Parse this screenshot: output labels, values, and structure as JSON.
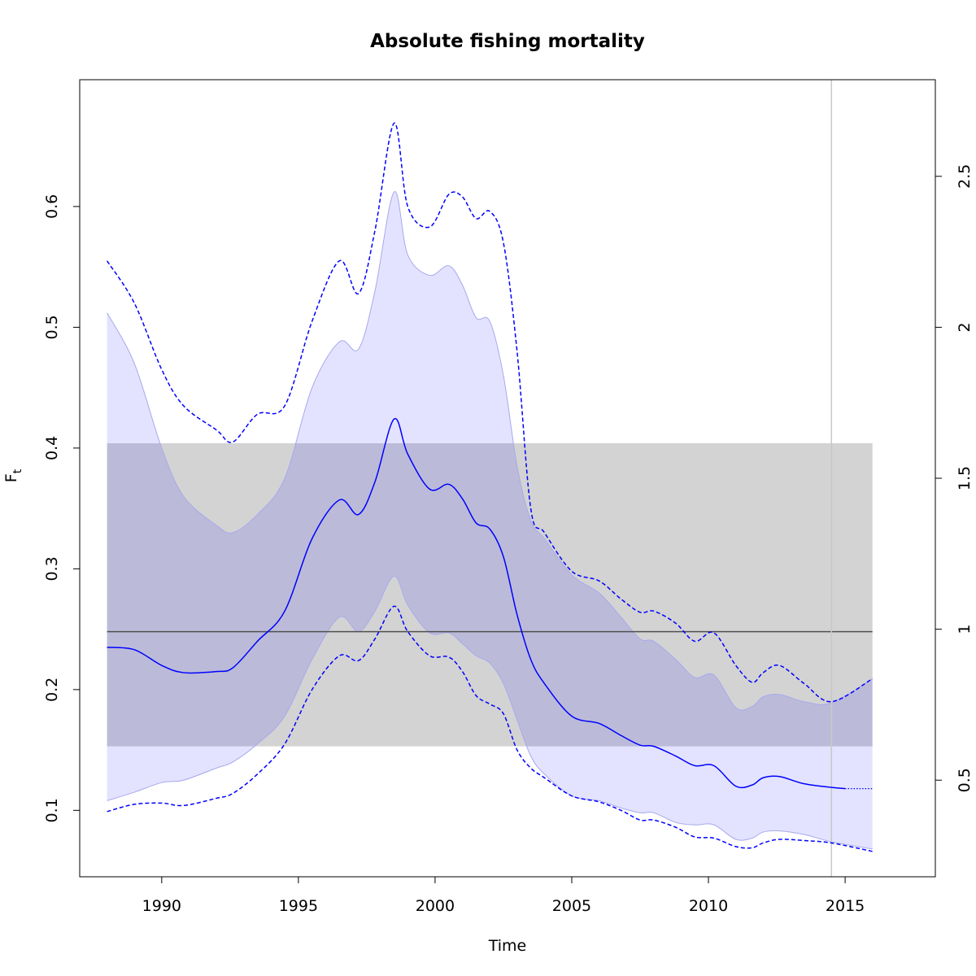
{
  "chart_data": {
    "type": "line",
    "title": "Absolute fishing mortality",
    "xlabel": "Time",
    "ylabel": "F",
    "ylabel_subscript": "t",
    "xlim": [
      1987,
      2018.3
    ],
    "ylim": [
      0.045,
      0.705
    ],
    "y2lim": [
      0.18,
      2.82
    ],
    "x_ticks": [
      1990,
      1995,
      2000,
      2005,
      2010,
      2015
    ],
    "x_tick_labels": [
      "1990",
      "1995",
      "2000",
      "2005",
      "2010",
      "2015"
    ],
    "y_ticks": [
      0.1,
      0.2,
      0.3,
      0.4,
      0.5,
      0.6
    ],
    "y_tick_labels": [
      "0.1",
      "0.2",
      "0.3",
      "0.4",
      "0.5",
      "0.6"
    ],
    "y2_ticks": [
      0.5,
      1,
      1.5,
      2,
      2.5
    ],
    "y2_tick_labels": [
      "0.5",
      "1",
      "1.5",
      "2",
      "2.5"
    ],
    "grid": false,
    "colors": {
      "estimate": "#0000ff",
      "ci_fill": "#e3e3ff",
      "ci_edge": "#a8a8ee",
      "ref_band": "#d3d3d3",
      "overlap": "#bbbbd9",
      "ref_line": "#505050",
      "vline": "#c8c8c8"
    },
    "reference": {
      "fmsy": 0.248,
      "fmsy_lower": 0.153,
      "fmsy_upper": 0.404,
      "x_range": [
        1988,
        2016
      ]
    },
    "vline_x": 2014.5,
    "series": [
      {
        "role": "estimate",
        "x": [
          1988,
          1989,
          1990,
          1990.8,
          1992,
          1992.6,
          1993.5,
          1994.5,
          1995.5,
          1996.5,
          1997.2,
          1997.8,
          1998.5,
          1999,
          1999.8,
          2000.5,
          2001,
          2001.5,
          2002,
          2002.5,
          2003,
          2003.5,
          2004,
          2005,
          2006,
          2006.8,
          2007.5,
          2008,
          2008.8,
          2009.5,
          2010.2,
          2011,
          2011.6,
          2012,
          2012.6,
          2013.5,
          2014.5,
          2015
        ],
        "values": [
          0.235,
          0.233,
          0.22,
          0.214,
          0.215,
          0.218,
          0.24,
          0.265,
          0.325,
          0.357,
          0.345,
          0.372,
          0.424,
          0.395,
          0.366,
          0.37,
          0.358,
          0.338,
          0.333,
          0.31,
          0.262,
          0.225,
          0.205,
          0.178,
          0.172,
          0.162,
          0.154,
          0.153,
          0.145,
          0.137,
          0.137,
          0.12,
          0.121,
          0.127,
          0.128,
          0.122,
          0.119,
          0.118
        ]
      },
      {
        "role": "projection",
        "x": [
          2015,
          2016
        ],
        "values": [
          0.118,
          0.118
        ]
      },
      {
        "role": "ci_upper",
        "x": [
          1988,
          1989,
          1990,
          1990.8,
          1992,
          1992.6,
          1993.5,
          1994.5,
          1995.5,
          1996.5,
          1997.2,
          1997.8,
          1998.5,
          1999,
          1999.8,
          2000.5,
          2001,
          2001.5,
          2002,
          2002.5,
          2003,
          2003.5,
          2004,
          2005,
          2006,
          2006.8,
          2007.5,
          2008,
          2008.8,
          2009.5,
          2010.2,
          2011,
          2011.6,
          2012,
          2012.6,
          2013.5,
          2014.5,
          2016
        ],
        "values": [
          0.512,
          0.47,
          0.4,
          0.36,
          0.336,
          0.33,
          0.345,
          0.375,
          0.45,
          0.488,
          0.482,
          0.53,
          0.612,
          0.56,
          0.543,
          0.551,
          0.535,
          0.508,
          0.505,
          0.46,
          0.385,
          0.34,
          0.325,
          0.295,
          0.28,
          0.26,
          0.242,
          0.24,
          0.225,
          0.21,
          0.212,
          0.185,
          0.186,
          0.194,
          0.196,
          0.19,
          0.189,
          0.209
        ]
      },
      {
        "role": "ci_lower",
        "x": [
          1988,
          1989,
          1990,
          1990.8,
          1992,
          1992.6,
          1993.5,
          1994.5,
          1995.5,
          1996.5,
          1997.2,
          1997.8,
          1998.5,
          1999,
          1999.8,
          2000.5,
          2001,
          2001.5,
          2002,
          2002.5,
          2003,
          2003.5,
          2004,
          2005,
          2006,
          2006.8,
          2007.5,
          2008,
          2008.8,
          2009.5,
          2010.2,
          2011,
          2011.6,
          2012,
          2012.6,
          2013.5,
          2014.5,
          2016
        ],
        "values": [
          0.108,
          0.115,
          0.123,
          0.125,
          0.135,
          0.14,
          0.155,
          0.178,
          0.225,
          0.26,
          0.248,
          0.265,
          0.294,
          0.27,
          0.247,
          0.247,
          0.238,
          0.228,
          0.222,
          0.205,
          0.175,
          0.145,
          0.13,
          0.112,
          0.108,
          0.102,
          0.098,
          0.098,
          0.09,
          0.088,
          0.088,
          0.076,
          0.077,
          0.082,
          0.083,
          0.08,
          0.074,
          0.068
        ]
      },
      {
        "role": "upper_dashed",
        "x": [
          1988,
          1989,
          1990,
          1990.8,
          1992,
          1992.6,
          1993.5,
          1994.5,
          1995.5,
          1996.5,
          1997.2,
          1997.8,
          1998.5,
          1999,
          1999.8,
          2000.5,
          2001,
          2001.5,
          2002,
          2002.5,
          2003,
          2003.5,
          2004,
          2005,
          2006,
          2006.8,
          2007.5,
          2008,
          2008.8,
          2009.5,
          2010.2,
          2011,
          2011.6,
          2012,
          2012.6,
          2013.5,
          2014.5,
          2016
        ],
        "values": [
          0.555,
          0.52,
          0.465,
          0.435,
          0.415,
          0.405,
          0.428,
          0.435,
          0.505,
          0.555,
          0.528,
          0.58,
          0.669,
          0.6,
          0.583,
          0.61,
          0.608,
          0.59,
          0.596,
          0.57,
          0.48,
          0.35,
          0.33,
          0.298,
          0.29,
          0.275,
          0.264,
          0.265,
          0.255,
          0.24,
          0.247,
          0.22,
          0.206,
          0.214,
          0.22,
          0.205,
          0.19,
          0.209
        ]
      },
      {
        "role": "lower_dashed",
        "x": [
          1988,
          1989,
          1990,
          1990.8,
          1992,
          1992.6,
          1993.5,
          1994.5,
          1995.5,
          1996.5,
          1997.2,
          1997.8,
          1998.5,
          1999,
          1999.8,
          2000.5,
          2001,
          2001.5,
          2002,
          2002.5,
          2003,
          2003.5,
          2004,
          2005,
          2006,
          2006.8,
          2007.5,
          2008,
          2008.8,
          2009.5,
          2010.2,
          2011,
          2011.6,
          2012,
          2012.6,
          2013.5,
          2014.5,
          2016
        ],
        "values": [
          0.099,
          0.105,
          0.106,
          0.104,
          0.11,
          0.114,
          0.13,
          0.155,
          0.2,
          0.228,
          0.224,
          0.242,
          0.269,
          0.248,
          0.228,
          0.227,
          0.215,
          0.195,
          0.188,
          0.18,
          0.15,
          0.135,
          0.127,
          0.112,
          0.107,
          0.1,
          0.092,
          0.092,
          0.086,
          0.078,
          0.077,
          0.07,
          0.069,
          0.073,
          0.076,
          0.075,
          0.073,
          0.066
        ]
      }
    ]
  }
}
